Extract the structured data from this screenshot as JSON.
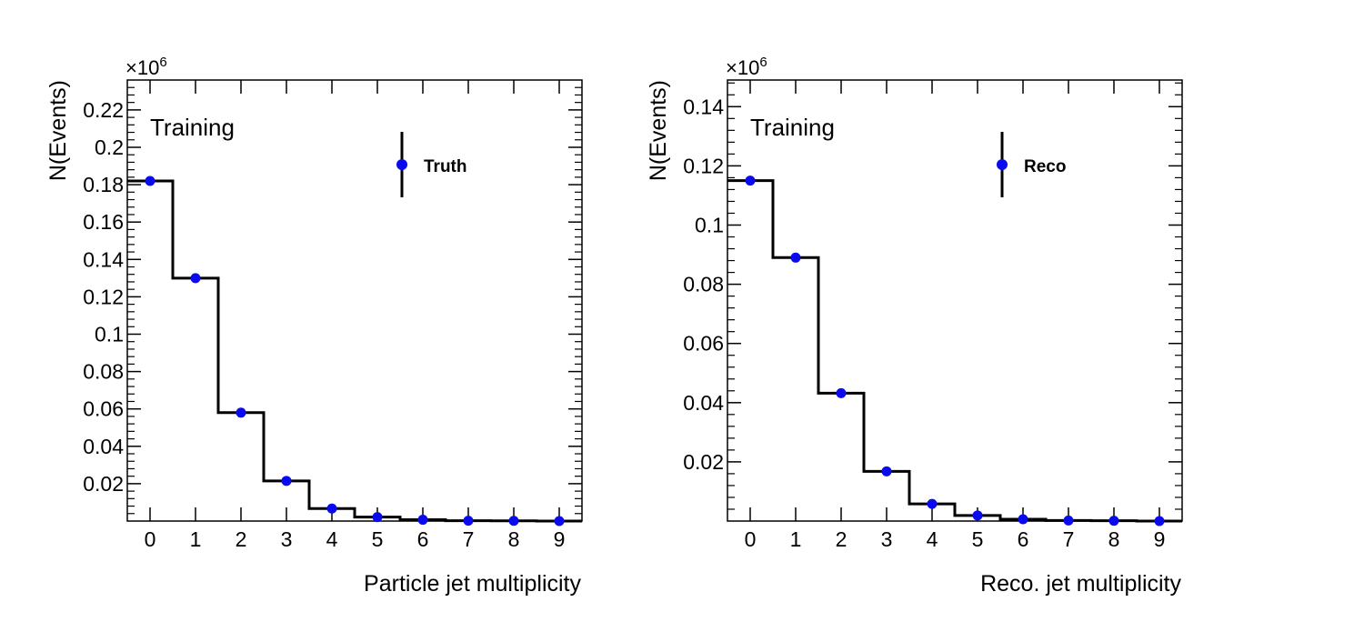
{
  "colors": {
    "marker": "#0a0aee",
    "line": "#000000"
  },
  "chart_data": [
    {
      "type": "bar",
      "x": [
        0,
        1,
        2,
        3,
        4,
        5,
        6,
        7,
        8,
        9
      ],
      "values": [
        0.182,
        0.13,
        0.058,
        0.0215,
        0.0067,
        0.0021,
        0.0007,
        0.0002,
        0.0001,
        0.0
      ],
      "ylabel": "N(Events)",
      "xlabel": "Particle jet multiplicity",
      "multiplier": "×10",
      "multiplier_exp": "6",
      "annotation": "Training",
      "legend": "Truth",
      "legend_position": "top-right",
      "xlim": [
        -0.5,
        9.5
      ],
      "ylim": [
        0,
        0.236
      ],
      "yticks": [
        0.02,
        0.04,
        0.06,
        0.08,
        0.1,
        0.12,
        0.14,
        0.16,
        0.18,
        0.2,
        0.22
      ],
      "ytick_labels": [
        "0.02",
        "0.04",
        "0.06",
        "0.08",
        "0.1",
        "0.12",
        "0.14",
        "0.16",
        "0.18",
        "0.2",
        "0.22"
      ],
      "xtick_labels": [
        "0",
        "1",
        "2",
        "3",
        "4",
        "5",
        "6",
        "7",
        "8",
        "9"
      ]
    },
    {
      "type": "bar",
      "x": [
        0,
        1,
        2,
        3,
        4,
        5,
        6,
        7,
        8,
        9
      ],
      "values": [
        0.115,
        0.089,
        0.0432,
        0.0168,
        0.0058,
        0.0019,
        0.0006,
        0.0002,
        0.0001,
        0.0
      ],
      "ylabel": "N(Events)",
      "xlabel": "Reco. jet multiplicity",
      "multiplier": "×10",
      "multiplier_exp": "6",
      "annotation": "Training",
      "legend": "Reco",
      "legend_position": "top-right",
      "xlim": [
        -0.5,
        9.5
      ],
      "ylim": [
        0,
        0.149
      ],
      "yticks": [
        0.02,
        0.04,
        0.06,
        0.08,
        0.1,
        0.12,
        0.14
      ],
      "ytick_labels": [
        "0.02",
        "0.04",
        "0.06",
        "0.08",
        "0.1",
        "0.12",
        "0.14"
      ],
      "xtick_labels": [
        "0",
        "1",
        "2",
        "3",
        "4",
        "5",
        "6",
        "7",
        "8",
        "9"
      ]
    }
  ]
}
